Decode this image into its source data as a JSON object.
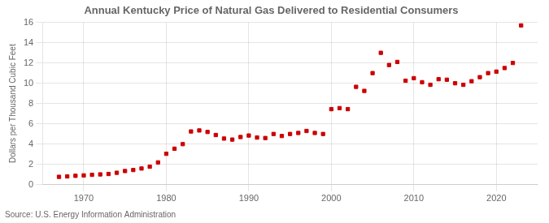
{
  "chart_data": {
    "type": "scatter",
    "title": "Annual Kentucky Price of Natural Gas Delivered to Residential Consumers",
    "ylabel": "Dollars per Thousand Cubic Feet",
    "annotations": [
      "Source: U.S. Energy Information Administration"
    ],
    "x": [
      1967,
      1968,
      1969,
      1970,
      1971,
      1972,
      1973,
      1974,
      1975,
      1976,
      1977,
      1978,
      1979,
      1980,
      1981,
      1982,
      1983,
      1984,
      1985,
      1986,
      1987,
      1988,
      1989,
      1990,
      1991,
      1992,
      1993,
      1994,
      1995,
      1996,
      1997,
      1998,
      1999,
      2000,
      2001,
      2002,
      2003,
      2004,
      2005,
      2006,
      2007,
      2008,
      2009,
      2010,
      2011,
      2012,
      2013,
      2014,
      2015,
      2016,
      2017,
      2018,
      2019,
      2020,
      2021,
      2022,
      2023
    ],
    "values": [
      0.78,
      0.82,
      0.88,
      0.92,
      0.98,
      1.02,
      1.06,
      1.18,
      1.35,
      1.45,
      1.6,
      1.78,
      2.2,
      3.05,
      3.55,
      4.0,
      5.25,
      5.35,
      5.2,
      4.9,
      4.55,
      4.45,
      4.7,
      4.85,
      4.65,
      4.6,
      5.0,
      4.8,
      5.0,
      5.1,
      5.3,
      5.1,
      5.0,
      7.45,
      7.55,
      7.45,
      9.65,
      9.25,
      11.0,
      13.0,
      11.8,
      12.1,
      10.25,
      10.5,
      10.1,
      9.85,
      10.4,
      10.35,
      10.0,
      9.85,
      10.2,
      10.6,
      11.0,
      11.15,
      11.5,
      12.0,
      15.7
    ],
    "color": "#cc0000",
    "marker": "square",
    "xlim": [
      1965,
      2025
    ],
    "xticks": [
      1970,
      1980,
      1990,
      2000,
      2010,
      2020
    ],
    "ylim": [
      0,
      16
    ],
    "yticks": [
      0,
      2,
      4,
      6,
      8,
      10,
      12,
      14,
      16
    ],
    "grid": true
  }
}
